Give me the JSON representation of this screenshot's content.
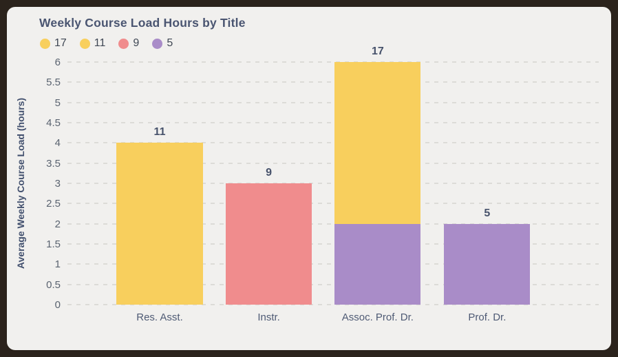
{
  "colors": {
    "frame_border": "#2b231c",
    "card_background": "#f1f0ee",
    "title_text": "#4a5571",
    "gridline": "#dcdbd7",
    "tick_text": "#5a6370",
    "axis_title_text": "#42506e",
    "value_label_text": "#47526b",
    "series_yellow": "#f8cf5d",
    "series_salmon": "#f08c8d",
    "series_purple": "#a98cc8"
  },
  "chart_data": {
    "type": "bar",
    "stacked": true,
    "title": "Weekly Course Load Hours by Title",
    "xlabel": "",
    "ylabel": "Average Weekly Course Load (hours)",
    "ylim": [
      0,
      6
    ],
    "ytick_step": 0.5,
    "ytick_labels": [
      "0",
      "0.5",
      "1",
      "1.5",
      "2",
      "2.5",
      "3",
      "3.5",
      "4",
      "4.5",
      "5",
      "5.5",
      "6"
    ],
    "grid": "horizontal-dashed",
    "legend_position": "top-left",
    "legend": [
      {
        "label": "17",
        "color": "#f8cf5d"
      },
      {
        "label": "11",
        "color": "#f8cf5d"
      },
      {
        "label": "9",
        "color": "#f08c8d"
      },
      {
        "label": "5",
        "color": "#a98cc8"
      }
    ],
    "categories": [
      "Res. Asst.",
      "Instr.",
      "Assoc. Prof. Dr.",
      "Prof. Dr."
    ],
    "bars": [
      {
        "category": "Res. Asst.",
        "value_label": "11",
        "total_height": 4,
        "segments": [
          {
            "color": "#f8cf5d",
            "start": 0,
            "end": 4
          }
        ]
      },
      {
        "category": "Instr.",
        "value_label": "9",
        "total_height": 3,
        "segments": [
          {
            "color": "#f08c8d",
            "start": 0,
            "end": 3
          }
        ]
      },
      {
        "category": "Assoc. Prof. Dr.",
        "value_label": "17",
        "total_height": 6,
        "segments": [
          {
            "color": "#a98cc8",
            "start": 0,
            "end": 2
          },
          {
            "color": "#f8cf5d",
            "start": 2,
            "end": 6
          }
        ]
      },
      {
        "category": "Prof. Dr.",
        "value_label": "5",
        "total_height": 2,
        "segments": [
          {
            "color": "#a98cc8",
            "start": 0,
            "end": 2
          }
        ]
      }
    ]
  }
}
